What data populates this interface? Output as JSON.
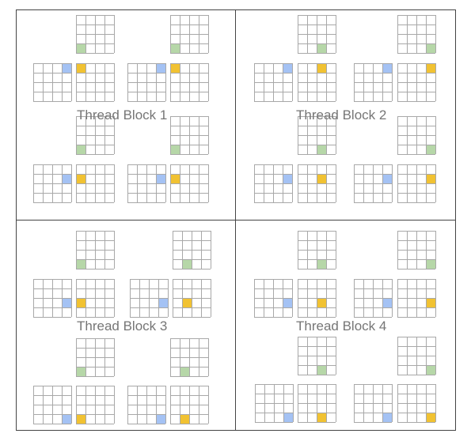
{
  "blocks": [
    {
      "label": "Thread Block 1"
    },
    {
      "label": "Thread Block 2"
    },
    {
      "label": "Thread Block 3"
    },
    {
      "label": "Thread Block 4"
    }
  ],
  "grid": {
    "rows": 4,
    "cols": 4
  },
  "colors": {
    "green": "#b6d7a8",
    "blue": "#a4c2f4",
    "orange": "#f1c232",
    "grid_line": "#a8a8a8",
    "border": "#444444",
    "label": "#767676"
  }
}
